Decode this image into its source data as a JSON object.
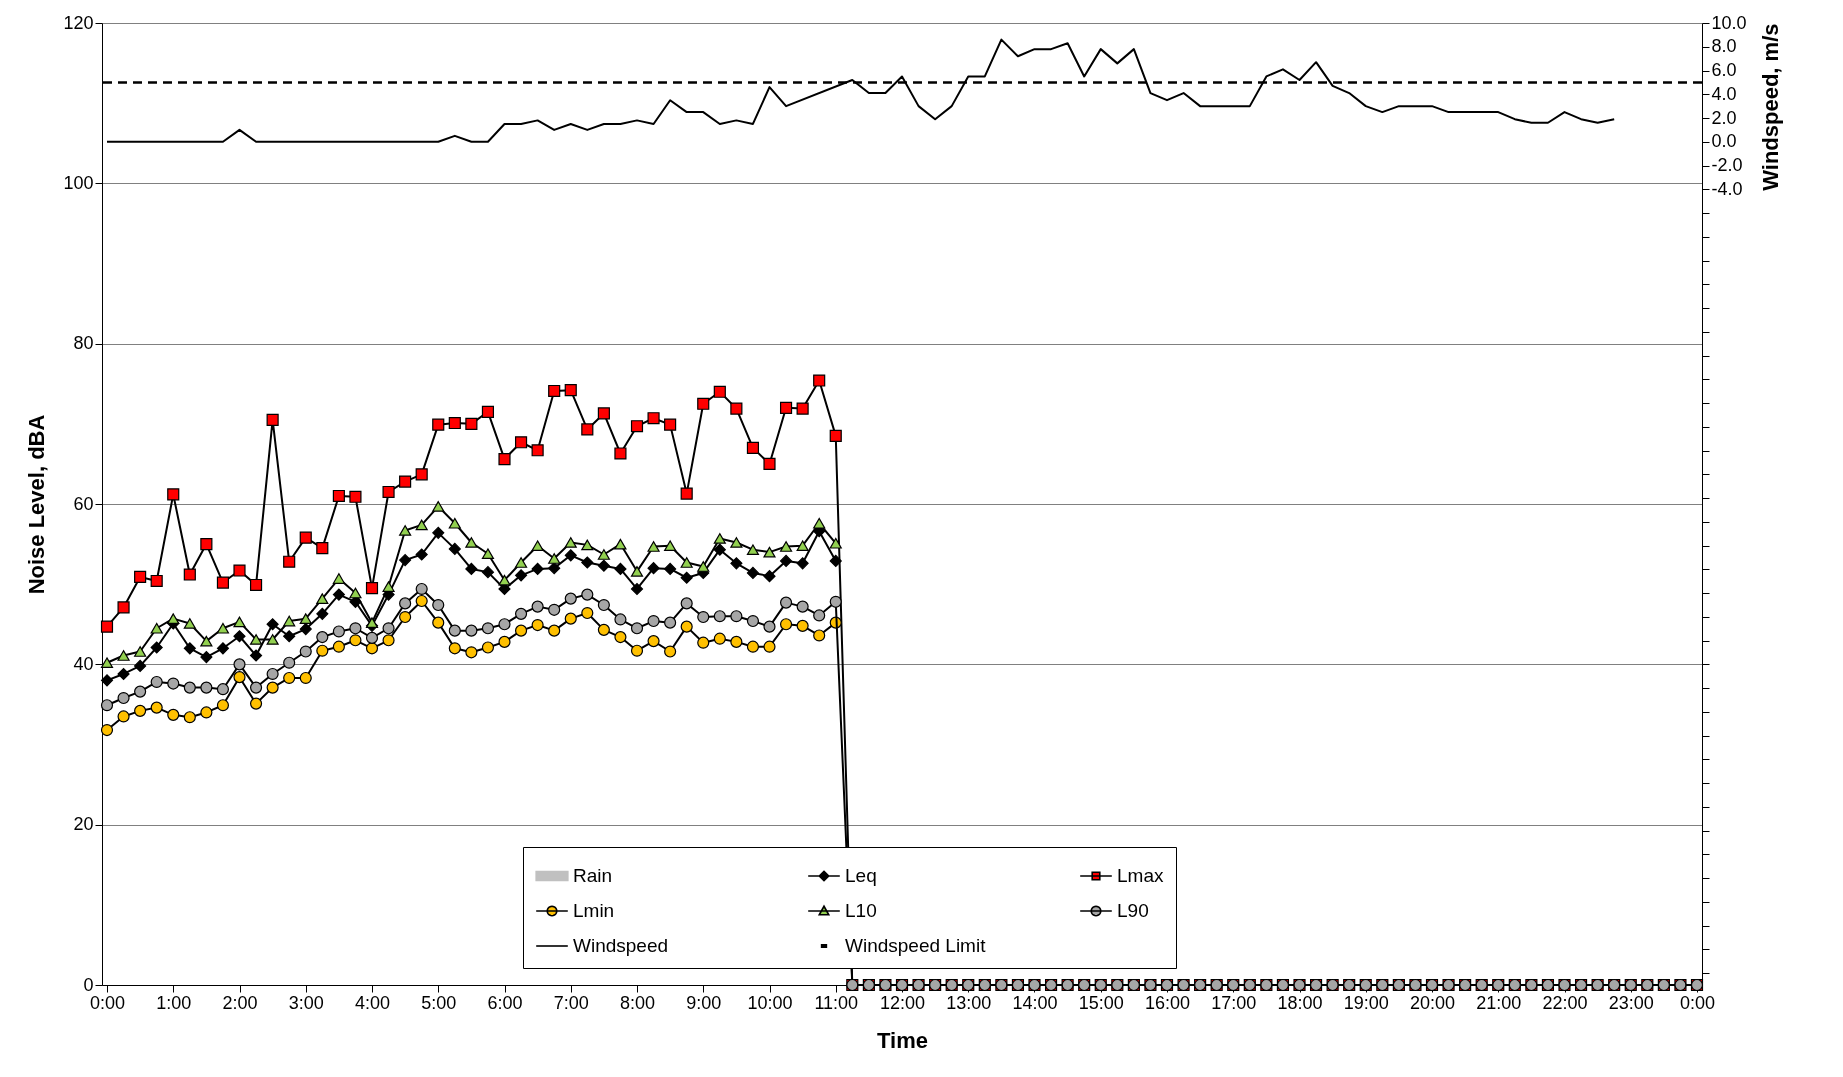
{
  "chart_data": {
    "type": "line",
    "xlabel": "Time",
    "ylabel": "Noise Level, dBA",
    "y2label": "Windspeed, m/s",
    "x": [
      0,
      0.25,
      0.5,
      0.75,
      1,
      1.25,
      1.5,
      1.75,
      2,
      2.25,
      2.5,
      2.75,
      3,
      3.25,
      3.5,
      3.75,
      4,
      4.25,
      4.5,
      4.75,
      5,
      5.25,
      5.5,
      5.75,
      6,
      6.25,
      6.5,
      6.75,
      7,
      7.25,
      7.5,
      7.75,
      8,
      8.25,
      8.5,
      8.75,
      9,
      9.25,
      9.5,
      9.75,
      10,
      10.25,
      10.5,
      10.75,
      11,
      11.25,
      11.5,
      11.75,
      12,
      12.25,
      12.5,
      12.75,
      13,
      13.25,
      13.5,
      13.75,
      14,
      14.25,
      14.5,
      14.75,
      15,
      15.25,
      15.5,
      15.75,
      16,
      16.25,
      16.5,
      16.75,
      17,
      17.25,
      17.5,
      17.75,
      18,
      18.25,
      18.5,
      18.75,
      19,
      19.25,
      19.5,
      19.75,
      20,
      20.25,
      20.5,
      20.75,
      21,
      21.25,
      21.5,
      21.75,
      22,
      22.25,
      22.5,
      22.75,
      23,
      23.25,
      23.5,
      23.75,
      24
    ],
    "xlim": [
      0,
      24
    ],
    "xticks": [
      {
        "value": 0,
        "label": "0:00"
      },
      {
        "value": 1,
        "label": "1:00"
      },
      {
        "value": 2,
        "label": "2:00"
      },
      {
        "value": 3,
        "label": "3:00"
      },
      {
        "value": 4,
        "label": "4:00"
      },
      {
        "value": 5,
        "label": "5:00"
      },
      {
        "value": 6,
        "label": "6:00"
      },
      {
        "value": 7,
        "label": "7:00"
      },
      {
        "value": 8,
        "label": "8:00"
      },
      {
        "value": 9,
        "label": "9:00"
      },
      {
        "value": 10,
        "label": "10:00"
      },
      {
        "value": 11,
        "label": "11:00"
      },
      {
        "value": 12,
        "label": "12:00"
      },
      {
        "value": 13,
        "label": "13:00"
      },
      {
        "value": 14,
        "label": "14:00"
      },
      {
        "value": 15,
        "label": "15:00"
      },
      {
        "value": 16,
        "label": "16:00"
      },
      {
        "value": 17,
        "label": "17:00"
      },
      {
        "value": 18,
        "label": "18:00"
      },
      {
        "value": 19,
        "label": "19:00"
      },
      {
        "value": 20,
        "label": "20:00"
      },
      {
        "value": 21,
        "label": "21:00"
      },
      {
        "value": 22,
        "label": "22:00"
      },
      {
        "value": 23,
        "label": "23:00"
      },
      {
        "value": 24,
        "label": "0:00"
      }
    ],
    "ylim": [
      0,
      120
    ],
    "yticks": [
      0,
      20,
      40,
      60,
      80,
      100,
      120
    ],
    "y2lim": [
      -71,
      10
    ],
    "y2ticks": [
      {
        "value": 10,
        "label": "10.0"
      },
      {
        "value": 8,
        "label": "8.0"
      },
      {
        "value": 6,
        "label": "6.0"
      },
      {
        "value": 4,
        "label": "4.0"
      },
      {
        "value": 2,
        "label": "2.0"
      },
      {
        "value": 0,
        "label": "0.0"
      },
      {
        "value": -2,
        "label": "-2.0"
      },
      {
        "value": -4,
        "label": "-4.0"
      },
      {
        "value": -6,
        "label": null
      },
      {
        "value": -8,
        "label": null
      },
      {
        "value": -10,
        "label": null
      },
      {
        "value": -12,
        "label": null
      },
      {
        "value": -14,
        "label": null
      },
      {
        "value": -16,
        "label": null
      },
      {
        "value": -18,
        "label": null
      },
      {
        "value": -20,
        "label": null
      },
      {
        "value": -22,
        "label": null
      },
      {
        "value": -24,
        "label": null
      },
      {
        "value": -26,
        "label": null
      },
      {
        "value": -28,
        "label": null
      },
      {
        "value": -30,
        "label": null
      },
      {
        "value": -32,
        "label": null
      },
      {
        "value": -34,
        "label": null
      },
      {
        "value": -36,
        "label": null
      },
      {
        "value": -38,
        "label": null
      },
      {
        "value": -40,
        "label": null
      },
      {
        "value": -42,
        "label": null
      },
      {
        "value": -44,
        "label": null
      },
      {
        "value": -46,
        "label": null
      },
      {
        "value": -48,
        "label": null
      },
      {
        "value": -50,
        "label": null
      },
      {
        "value": -52,
        "label": null
      },
      {
        "value": -54,
        "label": null
      },
      {
        "value": -56,
        "label": null
      },
      {
        "value": -58,
        "label": null
      },
      {
        "value": -60,
        "label": null
      },
      {
        "value": -62,
        "label": null
      },
      {
        "value": -64,
        "label": null
      },
      {
        "value": -66,
        "label": null
      },
      {
        "value": -68,
        "label": null
      },
      {
        "value": -70,
        "label": null
      }
    ],
    "grid": "y",
    "legend": "bottom",
    "series": [
      {
        "name": "Rain",
        "type": "bar",
        "color": "#c0c0c0",
        "values": [
          null,
          null,
          null,
          null,
          null,
          null,
          null,
          null,
          null,
          null,
          null,
          null,
          null,
          null,
          null,
          null,
          null,
          null,
          null,
          null,
          null,
          null,
          null,
          null,
          null,
          null,
          null,
          null,
          null,
          null,
          null,
          null,
          null,
          null,
          null,
          null,
          null,
          null,
          null,
          null,
          null,
          null,
          null,
          null,
          null,
          null,
          null,
          null,
          null,
          null,
          null,
          null,
          null,
          null,
          null,
          null,
          null,
          null,
          null,
          null,
          null,
          null,
          null,
          null,
          null,
          null,
          null,
          null,
          null,
          null,
          null,
          null,
          null,
          null,
          null,
          null,
          null,
          null,
          null,
          null,
          null,
          null,
          null,
          null,
          null,
          null,
          null,
          null,
          null,
          null,
          null,
          null,
          null,
          null,
          null,
          null,
          null
        ]
      },
      {
        "name": "Leq",
        "color": "#000000",
        "marker": "diamond",
        "values": [
          38.0,
          38.8,
          39.8,
          42.1,
          45.1,
          42.0,
          40.9,
          42.0,
          43.5,
          41.1,
          45.0,
          43.5,
          44.4,
          46.3,
          48.7,
          47.8,
          44.8,
          48.7,
          53.0,
          53.7,
          56.4,
          54.4,
          51.9,
          51.5,
          49.4,
          51.1,
          51.9,
          52.0,
          53.6,
          52.7,
          52.3,
          51.9,
          49.4,
          52.0,
          51.9,
          50.8,
          51.4,
          54.3,
          52.6,
          51.4,
          51.0,
          52.9,
          52.6,
          56.6,
          52.9,
          null,
          null,
          null,
          null,
          null,
          null,
          null,
          null,
          null,
          null,
          null,
          null,
          null,
          null,
          null,
          null,
          null,
          null,
          null,
          null,
          null,
          null,
          null,
          null,
          null,
          null,
          null,
          null,
          null,
          null,
          null,
          null,
          null,
          null,
          null,
          null,
          null,
          null,
          null,
          null,
          null,
          null,
          null,
          null,
          null,
          null,
          null,
          null,
          null,
          null,
          null,
          null
        ]
      },
      {
        "name": "Lmax",
        "color": "#ff0000",
        "marker": "square",
        "values": [
          44.7,
          47.1,
          50.9,
          50.4,
          61.2,
          51.2,
          55.0,
          50.2,
          51.7,
          49.9,
          70.5,
          52.8,
          55.8,
          54.5,
          61.0,
          60.9,
          49.5,
          61.5,
          62.8,
          63.7,
          69.9,
          70.1,
          70.0,
          71.5,
          65.6,
          67.7,
          66.7,
          74.1,
          74.2,
          69.3,
          71.3,
          66.3,
          69.7,
          70.7,
          69.9,
          61.3,
          72.5,
          74.0,
          71.9,
          67.0,
          65.0,
          72.0,
          71.9,
          75.4,
          68.5,
          0,
          0,
          0,
          0,
          0,
          0,
          0,
          0,
          0,
          0,
          0,
          0,
          0,
          0,
          0,
          0,
          0,
          0,
          0,
          0,
          0,
          0,
          0,
          0,
          0,
          0,
          0,
          0,
          0,
          0,
          0,
          0,
          0,
          0,
          0,
          0,
          0,
          0,
          0,
          0,
          0,
          0,
          0,
          0,
          0,
          0,
          0,
          0,
          0,
          0,
          0,
          0
        ]
      },
      {
        "name": "Lmin",
        "color": "#ffc000",
        "marker": "circle",
        "values": [
          31.8,
          33.5,
          34.2,
          34.6,
          33.7,
          33.4,
          34.0,
          34.9,
          38.4,
          35.1,
          37.1,
          38.3,
          38.3,
          41.7,
          42.2,
          43.0,
          42.0,
          43.0,
          45.9,
          47.9,
          45.2,
          42.0,
          41.5,
          42.1,
          42.8,
          44.2,
          44.9,
          44.2,
          45.7,
          46.4,
          44.3,
          43.4,
          41.7,
          42.9,
          41.6,
          44.7,
          42.7,
          43.2,
          42.8,
          42.2,
          42.2,
          45.0,
          44.8,
          43.6,
          45.2,
          null,
          null,
          null,
          null,
          null,
          null,
          null,
          null,
          null,
          null,
          null,
          null,
          null,
          null,
          null,
          null,
          null,
          null,
          null,
          null,
          null,
          null,
          null,
          null,
          null,
          null,
          null,
          null,
          null,
          null,
          null,
          null,
          null,
          null,
          null,
          null,
          null,
          null,
          null,
          null,
          null,
          null,
          null,
          null,
          null,
          null,
          null,
          null,
          null,
          null,
          null,
          null
        ]
      },
      {
        "name": "L10",
        "color": "#92d050",
        "marker": "triangle",
        "values": [
          40.2,
          41.1,
          41.6,
          44.5,
          45.7,
          45.1,
          42.9,
          44.5,
          45.3,
          43.1,
          43.1,
          45.4,
          45.7,
          48.2,
          50.7,
          48.9,
          45.2,
          49.7,
          56.7,
          57.4,
          59.7,
          57.6,
          55.2,
          53.8,
          50.5,
          52.7,
          54.8,
          53.2,
          55.2,
          54.9,
          53.7,
          55.0,
          51.6,
          54.7,
          54.8,
          52.7,
          52.2,
          55.7,
          55.2,
          54.3,
          54.0,
          54.7,
          54.8,
          57.6,
          55.1,
          null,
          null,
          null,
          null,
          null,
          null,
          null,
          null,
          null,
          null,
          null,
          null,
          null,
          null,
          null,
          null,
          null,
          null,
          null,
          null,
          null,
          null,
          null,
          null,
          null,
          null,
          null,
          null,
          null,
          null,
          null,
          null,
          null,
          null,
          null,
          null,
          null,
          null,
          null,
          null,
          null,
          null,
          null,
          null,
          null,
          null,
          null,
          null,
          null,
          null,
          null,
          null
        ]
      },
      {
        "name": "L90",
        "color": "#a6a6a6",
        "marker": "circle",
        "values": [
          34.9,
          35.8,
          36.6,
          37.8,
          37.6,
          37.1,
          37.1,
          36.9,
          40.0,
          37.1,
          38.8,
          40.2,
          41.6,
          43.4,
          44.1,
          44.5,
          43.3,
          44.5,
          47.6,
          49.4,
          47.4,
          44.2,
          44.2,
          44.5,
          45.0,
          46.3,
          47.2,
          46.8,
          48.2,
          48.7,
          47.4,
          45.6,
          44.5,
          45.4,
          45.2,
          47.6,
          45.9,
          46.0,
          46.0,
          45.4,
          44.7,
          47.7,
          47.2,
          46.1,
          47.8,
          0,
          0,
          0,
          0,
          0,
          0,
          0,
          0,
          0,
          0,
          0,
          0,
          0,
          0,
          0,
          0,
          0,
          0,
          0,
          0,
          0,
          0,
          0,
          0,
          0,
          0,
          0,
          0,
          0,
          0,
          0,
          0,
          0,
          0,
          0,
          0,
          0,
          0,
          0,
          0,
          0,
          0,
          0,
          0,
          0,
          0,
          0,
          0,
          0,
          0,
          0,
          0
        ]
      },
      {
        "name": "Windspeed",
        "color": "#000000",
        "axis": "y2",
        "marker": "none",
        "x": [
          0,
          1.75,
          2,
          2.25,
          5,
          5.25,
          5.5,
          5.75,
          6,
          6.25,
          6.5,
          6.75,
          7,
          7.25,
          7.5,
          7.75,
          8,
          8.25,
          8.5,
          8.75,
          9,
          9.25,
          9.5,
          9.75,
          10,
          10.25,
          11.25,
          11.5,
          11.75,
          12,
          12.25,
          12.5,
          12.75,
          13,
          13.25,
          13.5,
          13.75,
          14,
          14.25,
          14.5,
          14.75,
          15,
          15.25,
          15.5,
          15.75,
          16,
          16.25,
          16.5,
          16.75,
          17,
          17.25,
          17.5,
          17.75,
          18,
          18.25,
          18.5,
          18.75,
          19,
          19.25,
          19.5,
          19.75,
          20,
          20.25,
          20.5,
          20.75,
          21,
          21.25,
          21.5,
          21.75,
          22,
          22.25,
          22.5,
          22.75
        ],
        "values": [
          0,
          0,
          1.0,
          0,
          0,
          0.5,
          0,
          0,
          1.5,
          1.5,
          1.8,
          1.0,
          1.5,
          1.0,
          1.5,
          1.5,
          1.8,
          1.5,
          3.5,
          2.5,
          2.5,
          1.5,
          1.8,
          1.5,
          4.6,
          3.0,
          5.2,
          4.1,
          4.1,
          5.5,
          3.0,
          1.9,
          3.0,
          5.5,
          5.5,
          8.6,
          7.2,
          7.8,
          7.8,
          8.3,
          5.5,
          7.8,
          6.6,
          7.8,
          4.1,
          3.5,
          4.1,
          3.0,
          3.0,
          3.0,
          3.0,
          5.5,
          6.1,
          5.2,
          6.7,
          4.7,
          4.1,
          3.0,
          2.5,
          3.0,
          3.0,
          3.0,
          2.5,
          2.5,
          2.5,
          2.5,
          1.9,
          1.6,
          1.6,
          2.5,
          1.9,
          1.6,
          1.9
        ]
      }
    ],
    "ref_lines": [
      {
        "axis": "y2",
        "value": 5,
        "label": "Windspeed Limit",
        "color": "#000000",
        "line_style": "dashed"
      }
    ]
  }
}
